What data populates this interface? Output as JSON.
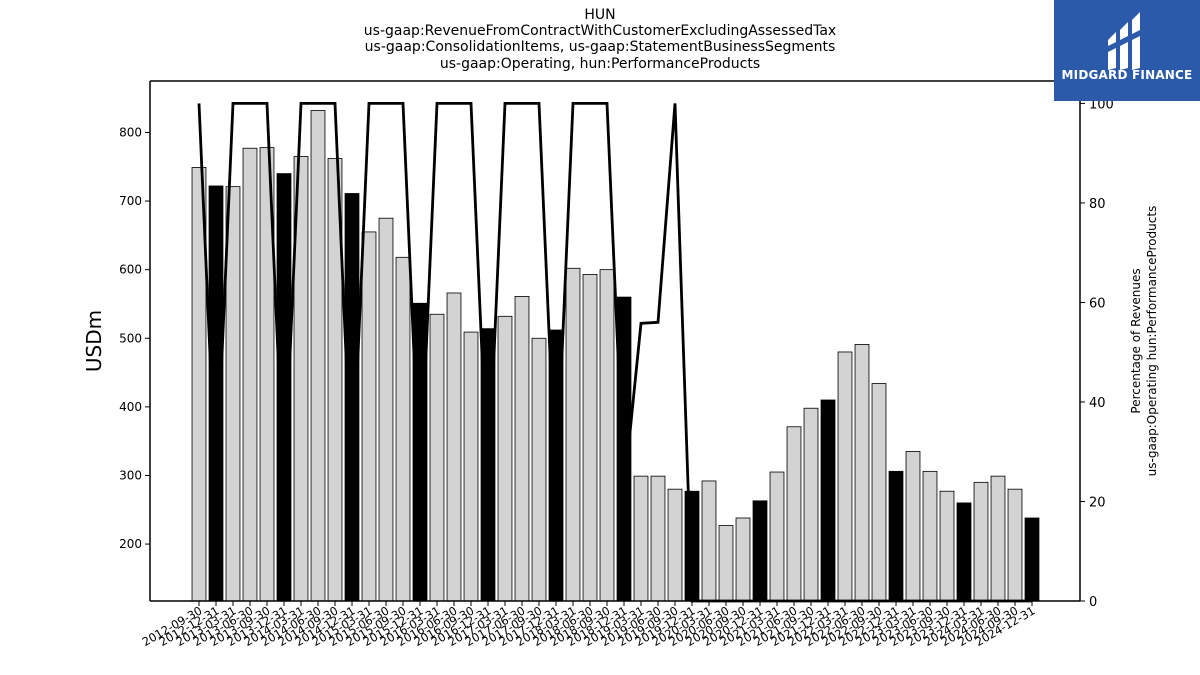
{
  "logo": {
    "text": "MIDGARD FINANCE",
    "bg_color": "#2b5aab"
  },
  "chart_data": {
    "type": "bar",
    "title_lines": [
      "HUN",
      "us-gaap:RevenueFromContractWithCustomerExcludingAssessedTax",
      "us-gaap:ConsolidationItems, us-gaap:StatementBusinessSegments",
      "us-gaap:Operating, hun:PerformanceProducts"
    ],
    "ylabel": "USDm",
    "y2label_lines": [
      "Percentage of Revenues",
      "us-gaap:Operating hun:PerformanceProducts"
    ],
    "ylim": [
      117,
      875
    ],
    "yticks": [
      200,
      300,
      400,
      500,
      600,
      700,
      800
    ],
    "y2lim": [
      0,
      104.5
    ],
    "y2ticks": [
      0,
      20,
      40,
      60,
      80,
      100
    ],
    "categories": [
      "2012-09-30",
      "2012-12-31",
      "2013-03-31",
      "2013-06-30",
      "2013-09-30",
      "2013-12-31",
      "2014-03-31",
      "2014-06-30",
      "2014-09-30",
      "2014-12-31",
      "2015-03-31",
      "2015-06-30",
      "2015-09-30",
      "2015-12-31",
      "2016-03-31",
      "2016-06-30",
      "2016-09-30",
      "2016-12-31",
      "2017-03-31",
      "2017-06-30",
      "2017-09-30",
      "2017-12-31",
      "2018-03-31",
      "2018-06-30",
      "2018-09-30",
      "2018-12-31",
      "2019-03-31",
      "2019-06-30",
      "2019-09-30",
      "2019-12-31",
      "2020-03-31",
      "2020-06-30",
      "2020-09-30",
      "2020-12-31",
      "2021-03-31",
      "2021-06-30",
      "2021-09-30",
      "2021-12-31",
      "2022-03-31",
      "2022-06-30",
      "2022-09-30",
      "2022-12-31",
      "2023-03-31",
      "2023-06-30",
      "2023-09-30",
      "2023-12-31",
      "2024-03-31",
      "2024-06-30",
      "2024-09-30",
      "2024-12-31"
    ],
    "values": [
      749,
      722,
      721,
      777,
      778,
      740,
      765,
      832,
      762,
      711,
      655,
      675,
      618,
      551,
      535,
      566,
      509,
      514,
      532,
      561,
      500,
      512,
      602,
      593,
      600,
      560,
      299,
      299,
      280,
      277,
      292,
      227,
      238,
      263,
      305,
      371,
      398,
      410,
      480,
      491,
      434,
      306,
      335,
      306,
      277,
      260,
      290,
      299,
      280,
      238
    ],
    "bar_colors": [
      "light",
      "dark",
      "light",
      "light",
      "light",
      "dark",
      "light",
      "light",
      "light",
      "dark",
      "light",
      "light",
      "light",
      "dark",
      "light",
      "light",
      "light",
      "dark",
      "light",
      "light",
      "light",
      "dark",
      "light",
      "light",
      "light",
      "dark",
      "light",
      "light",
      "light",
      "dark",
      "light",
      "light",
      "light",
      "dark",
      "light",
      "light",
      "light",
      "dark",
      "light",
      "light",
      "light",
      "dark",
      "light",
      "light",
      "light",
      "dark",
      "light",
      "light",
      "light",
      "dark"
    ],
    "percent_line": [
      100,
      22,
      100,
      100,
      100,
      22,
      100,
      100,
      100,
      22,
      100,
      100,
      100,
      22,
      100,
      100,
      100,
      22,
      100,
      100,
      100,
      22,
      100,
      100,
      100,
      22,
      55.8,
      56,
      100,
      0,
      0,
      0,
      0,
      0,
      0,
      0,
      0,
      0,
      0,
      0,
      0,
      0,
      0,
      0,
      0,
      0,
      0,
      0,
      0,
      0
    ],
    "colors": {
      "light": "#d3d3d3",
      "dark": "#000000",
      "line": "#000000"
    },
    "grid": false,
    "legend": "none"
  }
}
